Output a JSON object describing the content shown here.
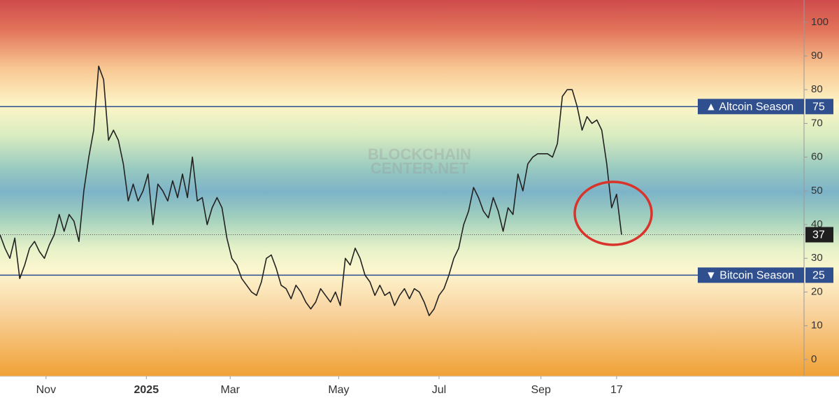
{
  "chart_data": {
    "type": "line",
    "watermark": [
      "BLOCKCHAIN",
      "CENTER.NET"
    ],
    "series": [
      {
        "color": "#222222",
        "x": [
          0,
          3,
          6,
          9,
          12,
          15,
          18,
          21,
          24,
          27,
          30,
          33,
          36,
          39,
          42,
          45,
          48,
          51,
          54,
          57,
          60,
          63,
          66,
          69,
          72,
          75,
          78,
          81,
          84,
          87,
          90,
          93,
          96,
          99,
          102,
          105,
          108,
          111,
          114,
          117,
          120,
          123,
          126,
          129,
          132,
          135,
          138,
          141,
          144,
          147,
          150,
          153,
          156,
          159,
          162,
          165,
          168,
          171,
          174,
          177,
          180,
          183,
          186,
          189,
          192,
          195,
          198,
          201,
          204,
          207,
          210,
          213,
          216,
          219,
          222,
          225,
          228,
          231,
          234,
          237,
          240,
          243,
          246,
          249,
          252,
          255,
          258,
          261,
          264,
          267,
          270,
          273,
          276,
          279,
          282,
          285,
          288,
          291,
          294,
          297,
          300,
          303,
          306,
          309,
          312,
          315,
          318,
          321,
          324,
          327,
          330,
          333,
          336,
          339,
          342,
          345,
          348,
          351,
          354,
          357,
          360,
          363,
          366,
          369,
          372,
          375,
          378
        ],
        "values": [
          37,
          33,
          30,
          36,
          24,
          28,
          33,
          35,
          32,
          30,
          34,
          37,
          43,
          38,
          43,
          41,
          35,
          50,
          60,
          68,
          87,
          83,
          65,
          68,
          65,
          58,
          47,
          52,
          47,
          50,
          55,
          40,
          52,
          50,
          47,
          53,
          48,
          55,
          48,
          60,
          47,
          48,
          40,
          45,
          48,
          45,
          36,
          30,
          28,
          24,
          22,
          20,
          19,
          23,
          30,
          31,
          27,
          22,
          21,
          18,
          22,
          20,
          17,
          15,
          17,
          21,
          19,
          17,
          20,
          16,
          30,
          28,
          33,
          30,
          25,
          23,
          19,
          22,
          19,
          20,
          16,
          19,
          21,
          18,
          21,
          20,
          17,
          13,
          15,
          19,
          21,
          25,
          30,
          33,
          40,
          44,
          51,
          48,
          44,
          42,
          48,
          44,
          38,
          45,
          43,
          55,
          50,
          58,
          60,
          61,
          61,
          61,
          60,
          64,
          78,
          80,
          80,
          75,
          68,
          72,
          70,
          71,
          68,
          58,
          45,
          49,
          37
        ]
      }
    ],
    "reference_lines": [
      {
        "value": 75,
        "label": "▲ Altcoin Season"
      },
      {
        "value": 25,
        "label": "▼ Bitcoin Season"
      }
    ],
    "xlim": [
      0,
      489
    ],
    "xticks": [
      {
        "value": 28,
        "label": "Nov"
      },
      {
        "value": 89,
        "label": "2025"
      },
      {
        "value": 140,
        "label": "Mar"
      },
      {
        "value": 206,
        "label": "May"
      },
      {
        "value": 267,
        "label": "Jul"
      },
      {
        "value": 329,
        "label": "Sep"
      },
      {
        "value": 375,
        "label": "17"
      }
    ],
    "ylim": [
      -5,
      106.6
    ],
    "yticks": [
      0,
      10,
      20,
      30,
      40,
      50,
      60,
      70,
      80,
      90,
      100
    ],
    "grid": false
  }
}
